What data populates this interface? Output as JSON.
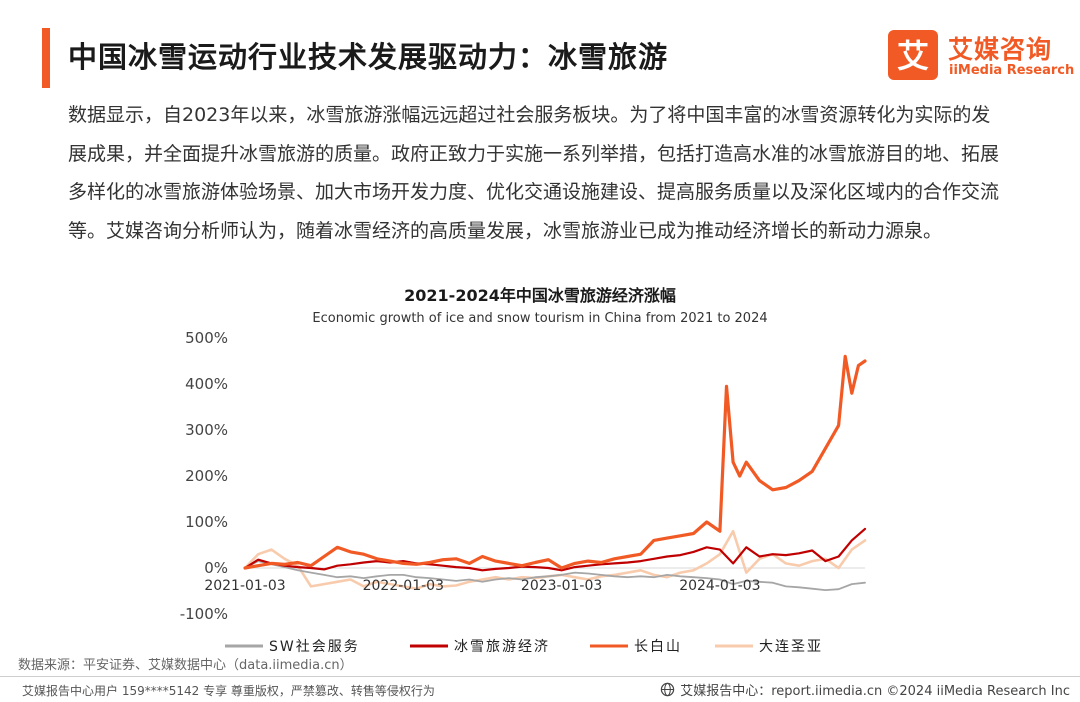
{
  "header": {
    "title": "中国冰雪运动行业技术发展驱动力：冰雪旅游",
    "accent_color": "#f15a24"
  },
  "brand": {
    "logo_glyph": "艾",
    "name_cn": "艾媒咨询",
    "name_en": "iiMedia Research",
    "color": "#f15a24"
  },
  "body": {
    "paragraph": "数据显示，自2023年以来，冰雪旅游涨幅远远超过社会服务板块。为了将中国丰富的冰雪资源转化为实际的发展成果，并全面提升冰雪旅游的质量。政府正致力于实施一系列举措，包括打造高水准的冰雪旅游目的地、拓展多样化的冰雪旅游体验场景、加大市场开发力度、优化交通设施建设、提高服务质量以及深化区域内的合作交流等。艾媒咨询分析师认为，随着冰雪经济的高质量发展，冰雪旅游业已成为推动经济增长的新动力源泉。"
  },
  "chart_data": {
    "type": "line",
    "title": "2021-2024年中国冰雪旅游经济涨幅",
    "subtitle": "Economic growth of ice and snow tourism in China from 2021 to 2024",
    "xlabel": "",
    "ylabel": "",
    "x_ticks": [
      "2021-01-03",
      "2022-01-03",
      "2023-01-03",
      "2024-01-03"
    ],
    "x_tick_positions": [
      0,
      12,
      24,
      36
    ],
    "y_ticks": [
      "500%",
      "400%",
      "300%",
      "200%",
      "100%",
      "0%",
      "-100%"
    ],
    "ylim": [
      -100,
      500
    ],
    "x_range": [
      0,
      47
    ],
    "x_unit": "months since 2021-01-03",
    "grid": false,
    "legend_position": "bottom",
    "series": [
      {
        "name": "SW社会服务",
        "color": "#a6a6a6",
        "x": [
          0,
          1,
          2,
          3,
          4,
          5,
          6,
          7,
          8,
          9,
          10,
          11,
          12,
          13,
          14,
          15,
          16,
          17,
          18,
          19,
          20,
          21,
          22,
          23,
          24,
          25,
          26,
          27,
          28,
          29,
          30,
          31,
          32,
          33,
          34,
          35,
          36,
          37,
          38,
          39,
          40,
          41,
          42,
          43,
          44,
          45,
          46,
          47
        ],
        "values": [
          0,
          15,
          8,
          2,
          -5,
          -10,
          -15,
          -20,
          -18,
          -22,
          -18,
          -15,
          -15,
          -20,
          -22,
          -25,
          -28,
          -25,
          -30,
          -25,
          -22,
          -25,
          -20,
          -18,
          -15,
          -10,
          -12,
          -15,
          -18,
          -20,
          -18,
          -20,
          -15,
          -18,
          -20,
          -22,
          -25,
          -35,
          -28,
          -30,
          -32,
          -40,
          -42,
          -45,
          -48,
          -46,
          -35,
          -32
        ]
      },
      {
        "name": "冰雪旅游经济",
        "color": "#c00000",
        "x": [
          0,
          1,
          2,
          3,
          4,
          5,
          6,
          7,
          8,
          9,
          10,
          11,
          12,
          13,
          14,
          15,
          16,
          17,
          18,
          19,
          20,
          21,
          22,
          23,
          24,
          25,
          26,
          27,
          28,
          29,
          30,
          31,
          32,
          33,
          34,
          35,
          36,
          37,
          38,
          39,
          40,
          41,
          42,
          43,
          44,
          45,
          46,
          47
        ],
        "values": [
          0,
          18,
          10,
          5,
          2,
          0,
          -3,
          5,
          8,
          12,
          15,
          12,
          15,
          10,
          8,
          5,
          2,
          0,
          -5,
          -2,
          0,
          3,
          2,
          0,
          -5,
          2,
          5,
          8,
          10,
          12,
          15,
          20,
          25,
          28,
          35,
          45,
          40,
          10,
          45,
          25,
          30,
          28,
          32,
          38,
          15,
          25,
          60,
          85
        ]
      },
      {
        "name": "长白山",
        "color": "#f15a24",
        "x": [
          0,
          1,
          2,
          3,
          4,
          5,
          6,
          7,
          8,
          9,
          10,
          11,
          12,
          13,
          14,
          15,
          16,
          17,
          18,
          19,
          20,
          21,
          22,
          23,
          24,
          25,
          26,
          27,
          28,
          29,
          30,
          31,
          32,
          33,
          34,
          35,
          36,
          36.5,
          37,
          37.5,
          38,
          39,
          40,
          41,
          42,
          43,
          44,
          45,
          45.5,
          46,
          46.5,
          47
        ],
        "values": [
          0,
          5,
          10,
          8,
          12,
          5,
          25,
          45,
          35,
          30,
          20,
          15,
          10,
          8,
          12,
          18,
          20,
          10,
          25,
          15,
          10,
          5,
          12,
          18,
          0,
          10,
          15,
          12,
          20,
          25,
          30,
          60,
          65,
          70,
          75,
          100,
          80,
          395,
          230,
          200,
          230,
          190,
          170,
          175,
          190,
          210,
          260,
          310,
          460,
          380,
          440,
          450
        ]
      },
      {
        "name": "大连圣亚",
        "color": "#f8cbad",
        "x": [
          0,
          1,
          2,
          3,
          4,
          5,
          6,
          7,
          8,
          9,
          10,
          11,
          12,
          13,
          14,
          15,
          16,
          17,
          18,
          19,
          20,
          21,
          22,
          23,
          24,
          25,
          26,
          27,
          28,
          29,
          30,
          31,
          32,
          33,
          34,
          35,
          36,
          37,
          38,
          39,
          40,
          41,
          42,
          43,
          44,
          45,
          46,
          47
        ],
        "values": [
          0,
          30,
          40,
          20,
          5,
          -40,
          -35,
          -30,
          -25,
          -40,
          -30,
          -35,
          -40,
          -45,
          -35,
          -40,
          -38,
          -30,
          -25,
          -20,
          -25,
          -20,
          -22,
          -18,
          -15,
          -20,
          -25,
          -18,
          -15,
          -10,
          -5,
          -15,
          -20,
          -10,
          -5,
          10,
          30,
          80,
          -10,
          20,
          30,
          10,
          5,
          15,
          20,
          0,
          40,
          60
        ]
      }
    ]
  },
  "legend": {
    "items": [
      "SW社会服务",
      "冰雪旅游经济",
      "长白山",
      "大连圣亚"
    ]
  },
  "source": "数据来源：平安证券、艾媒数据中心（data.iimedia.cn）",
  "footer": {
    "left": "艾媒报告中心用户 159****5142 专享 尊重版权，严禁篡改、转售等侵权行为",
    "right": "艾媒报告中心：report.iimedia.cn  ©2024  iiMedia Research  Inc"
  }
}
